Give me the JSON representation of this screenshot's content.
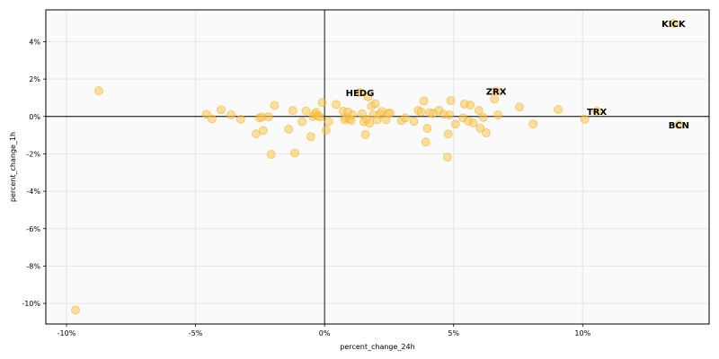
{
  "chart_data": {
    "type": "scatter",
    "xlabel": "percent_change_24h",
    "ylabel": "percent_change_1h",
    "xlim": [
      -0.108,
      0.149
    ],
    "ylim": [
      -0.111,
      0.057
    ],
    "x_ticks": [
      {
        "value": -0.1,
        "label": "-10%"
      },
      {
        "value": -0.05,
        "label": "-5%"
      },
      {
        "value": 0.0,
        "label": "0%"
      },
      {
        "value": 0.05,
        "label": "5%"
      },
      {
        "value": 0.1,
        "label": "10%"
      }
    ],
    "y_ticks": [
      {
        "value": 0.04,
        "label": "4%"
      },
      {
        "value": 0.02,
        "label": "2%"
      },
      {
        "value": 0.0,
        "label": "0%"
      },
      {
        "value": -0.02,
        "label": "-2%"
      },
      {
        "value": -0.04,
        "label": "-4%"
      },
      {
        "value": -0.06,
        "label": "-6%"
      },
      {
        "value": -0.08,
        "label": "-8%"
      },
      {
        "value": -0.1,
        "label": "-10%"
      }
    ],
    "grid": true,
    "reference_lines": {
      "x": 0,
      "y": 0
    },
    "colors": {
      "point_fill": "#f9c750",
      "point_stroke": "#eeaa22",
      "background": "#fafafa",
      "grid": "#e8e8e8"
    },
    "points": [
      {
        "x": -0.0965,
        "y": -0.1035
      },
      {
        "x": -0.0875,
        "y": 0.0137
      },
      {
        "x": -0.0458,
        "y": 0.0012
      },
      {
        "x": -0.0436,
        "y": -0.0013
      },
      {
        "x": -0.0401,
        "y": 0.0036
      },
      {
        "x": -0.0362,
        "y": 0.0009
      },
      {
        "x": -0.0325,
        "y": -0.0015
      },
      {
        "x": -0.0265,
        "y": -0.0093
      },
      {
        "x": -0.0252,
        "y": -0.0008
      },
      {
        "x": -0.0243,
        "y": -0.0003
      },
      {
        "x": -0.0238,
        "y": -0.0075
      },
      {
        "x": -0.0217,
        "y": -0.0002
      },
      {
        "x": -0.0207,
        "y": -0.0203
      },
      {
        "x": -0.0194,
        "y": 0.0059
      },
      {
        "x": -0.0139,
        "y": -0.0068
      },
      {
        "x": -0.0123,
        "y": 0.0032
      },
      {
        "x": -0.0115,
        "y": -0.0195
      },
      {
        "x": -0.0087,
        "y": -0.0028
      },
      {
        "x": -0.0072,
        "y": 0.0029
      },
      {
        "x": -0.0053,
        "y": -0.0108
      },
      {
        "x": -0.0045,
        "y": -0.0001
      },
      {
        "x": -0.0038,
        "y": 0.0013
      },
      {
        "x": -0.0032,
        "y": 0.0022
      },
      {
        "x": -0.0025,
        "y": 0.0002
      },
      {
        "x": -0.0018,
        "y": -0.0003
      },
      {
        "x": -0.0009,
        "y": 0.0074
      },
      {
        "x": 0.0006,
        "y": -0.0074
      },
      {
        "x": 0.0016,
        "y": -0.0028
      },
      {
        "x": 0.0045,
        "y": 0.0064
      },
      {
        "x": 0.0072,
        "y": 0.0028
      },
      {
        "x": 0.0078,
        "y": -0.0017
      },
      {
        "x": 0.0083,
        "y": -0.0006
      },
      {
        "x": 0.0091,
        "y": 0.0024
      },
      {
        "x": 0.0097,
        "y": -0.0012
      },
      {
        "x": 0.0103,
        "y": -0.0021
      },
      {
        "x": 0.0108,
        "y": 0.0009
      },
      {
        "x": 0.0145,
        "y": 0.0014
      },
      {
        "x": 0.0152,
        "y": -0.0028
      },
      {
        "x": 0.0158,
        "y": -0.0097
      },
      {
        "x": 0.0162,
        "y": -0.0015
      },
      {
        "x": 0.0168,
        "y": 0.0105
      },
      {
        "x": 0.0174,
        "y": -0.0036
      },
      {
        "x": 0.0182,
        "y": 0.0056
      },
      {
        "x": 0.0189,
        "y": 0.0009
      },
      {
        "x": 0.0196,
        "y": 0.0068
      },
      {
        "x": 0.0203,
        "y": -0.0018
      },
      {
        "x": 0.0215,
        "y": 0.0012
      },
      {
        "x": 0.0222,
        "y": 0.0027
      },
      {
        "x": 0.0238,
        "y": -0.0018
      },
      {
        "x": 0.0247,
        "y": 0.0017
      },
      {
        "x": 0.0254,
        "y": 0.0017
      },
      {
        "x": 0.0298,
        "y": -0.0023
      },
      {
        "x": 0.0312,
        "y": -0.0008
      },
      {
        "x": 0.0346,
        "y": -0.0026
      },
      {
        "x": 0.0363,
        "y": 0.0032
      },
      {
        "x": 0.0374,
        "y": 0.0024
      },
      {
        "x": 0.0385,
        "y": 0.0083
      },
      {
        "x": 0.0392,
        "y": -0.0137
      },
      {
        "x": 0.0398,
        "y": -0.0064
      },
      {
        "x": 0.0408,
        "y": 0.0021
      },
      {
        "x": 0.0421,
        "y": 0.0016
      },
      {
        "x": 0.0443,
        "y": 0.0033
      },
      {
        "x": 0.0462,
        "y": 0.0012
      },
      {
        "x": 0.0476,
        "y": -0.0218
      },
      {
        "x": 0.0479,
        "y": -0.0094
      },
      {
        "x": 0.0484,
        "y": 0.0008
      },
      {
        "x": 0.0489,
        "y": 0.0085
      },
      {
        "x": 0.0507,
        "y": -0.0041
      },
      {
        "x": 0.0536,
        "y": -0.0008
      },
      {
        "x": 0.0542,
        "y": 0.0066
      },
      {
        "x": 0.0557,
        "y": -0.0025
      },
      {
        "x": 0.0565,
        "y": 0.0061
      },
      {
        "x": 0.0576,
        "y": -0.0035
      },
      {
        "x": 0.0598,
        "y": 0.0032
      },
      {
        "x": 0.0603,
        "y": -0.0063
      },
      {
        "x": 0.0615,
        "y": -0.0005
      },
      {
        "x": 0.0626,
        "y": -0.0088
      },
      {
        "x": 0.0658,
        "y": 0.0093
      },
      {
        "x": 0.0672,
        "y": 0.0008
      },
      {
        "x": 0.0755,
        "y": 0.0051
      },
      {
        "x": 0.0808,
        "y": -0.0041
      },
      {
        "x": 0.0905,
        "y": 0.0037
      },
      {
        "x": 0.1008,
        "y": -0.0015
      }
    ],
    "labeled_points": [
      {
        "label": "HEDG",
        "x": 0.0137,
        "y": 0.0128
      },
      {
        "label": "ZRX",
        "x": 0.0665,
        "y": 0.0135
      },
      {
        "label": "TRX",
        "x": 0.1055,
        "y": 0.0028
      },
      {
        "label": "KICK",
        "x": 0.1352,
        "y": 0.0497
      },
      {
        "label": "BCN",
        "x": 0.1373,
        "y": -0.0044
      }
    ]
  }
}
